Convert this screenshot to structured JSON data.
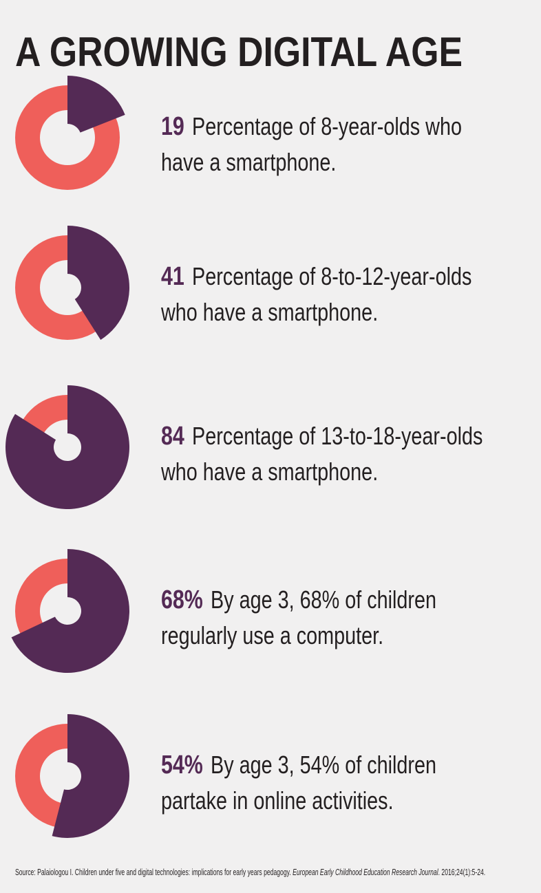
{
  "title": "A GROWING DIGITAL AGE",
  "source": {
    "before": "Source: Palaiologou I. Children under five and digital technologies: implications for early years pedagogy. ",
    "journal": "European Early Childhood Education Research Journal",
    "after": ". 2016;24(1):5-24."
  },
  "chart_data": [
    {
      "type": "donut",
      "values": [
        19
      ],
      "color": "#542a55",
      "track_color": "#ef5f5a",
      "text_lines": [
        "Percentage of 8-year-olds who",
        "have a smartphone."
      ]
    },
    {
      "type": "donut",
      "values": [
        41
      ],
      "color": "#542a55",
      "track_color": "#ef5f5a",
      "text_lines": [
        "Percentage of 8-to-12-year-olds",
        "who have a smartphone."
      ]
    },
    {
      "type": "donut",
      "values": [
        84
      ],
      "color": "#542a55",
      "track_color": "#ef5f5a",
      "text_lines": [
        "Percentage of 13-to-18-year-olds",
        "who have a smartphone."
      ]
    },
    {
      "type": "donut",
      "values": [
        68
      ],
      "value_labels": [
        "68%"
      ],
      "color": "#542a55",
      "track_color": "#ef5f5a",
      "text_lines": [
        "By age 3, 68% of children",
        "regularly use a computer."
      ]
    },
    {
      "type": "donut",
      "values": [
        54
      ],
      "value_labels": [
        "54%"
      ],
      "color": "#542a55",
      "track_color": "#ef5f5a",
      "text_lines": [
        "By age 3, 54% of children",
        "partake in online activities."
      ]
    }
  ]
}
